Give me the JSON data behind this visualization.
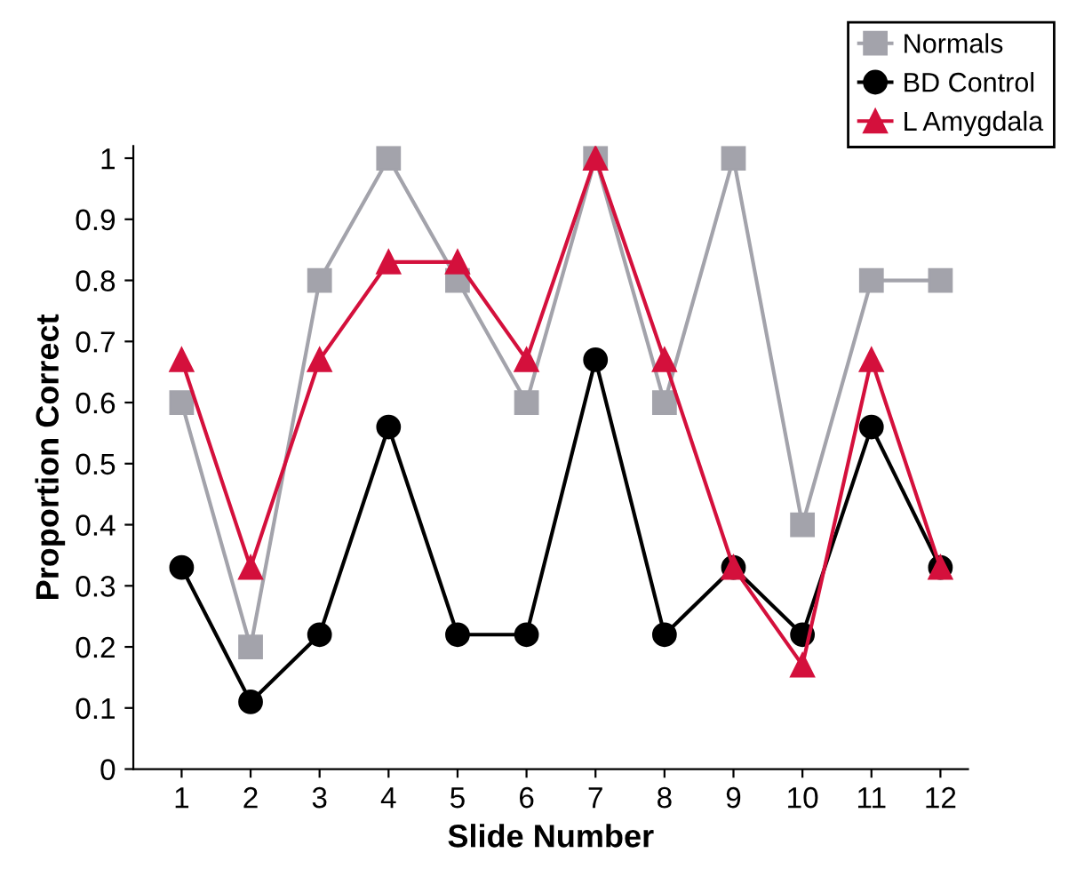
{
  "chart_data": {
    "type": "line",
    "xlabel": "Slide Number",
    "ylabel": "Proportion Correct",
    "x": [
      1,
      2,
      3,
      4,
      5,
      6,
      7,
      8,
      9,
      10,
      11,
      12
    ],
    "xlim": [
      0.3,
      12.4
    ],
    "xticks": [
      1,
      2,
      3,
      4,
      5,
      6,
      7,
      8,
      9,
      10,
      11,
      12
    ],
    "ylim": [
      0,
      1.02
    ],
    "yticks": [
      0,
      0.1,
      0.2,
      0.3,
      0.4,
      0.5,
      0.6,
      0.7,
      0.8,
      0.9,
      1
    ],
    "grid": false,
    "legend": "top right",
    "line_style": "solid",
    "series": [
      {
        "name": "Normals",
        "color": "#a3a3ab",
        "marker": "square",
        "values": [
          0.6,
          0.2,
          0.8,
          1,
          0.8,
          0.6,
          1,
          0.6,
          1,
          0.4,
          0.8,
          0.8
        ]
      },
      {
        "name": "BD Control",
        "color": "#000000",
        "marker": "circle",
        "values": [
          0.33,
          0.11,
          0.22,
          0.56,
          0.22,
          0.22,
          0.67,
          0.22,
          0.33,
          0.22,
          0.56,
          0.33
        ]
      },
      {
        "name": "L Amygdala",
        "color": "#d4103c",
        "marker": "triangle",
        "values": [
          0.67,
          0.33,
          0.67,
          0.83,
          0.83,
          0.67,
          1,
          0.67,
          0.33,
          0.17,
          0.67,
          0.33
        ]
      }
    ]
  }
}
